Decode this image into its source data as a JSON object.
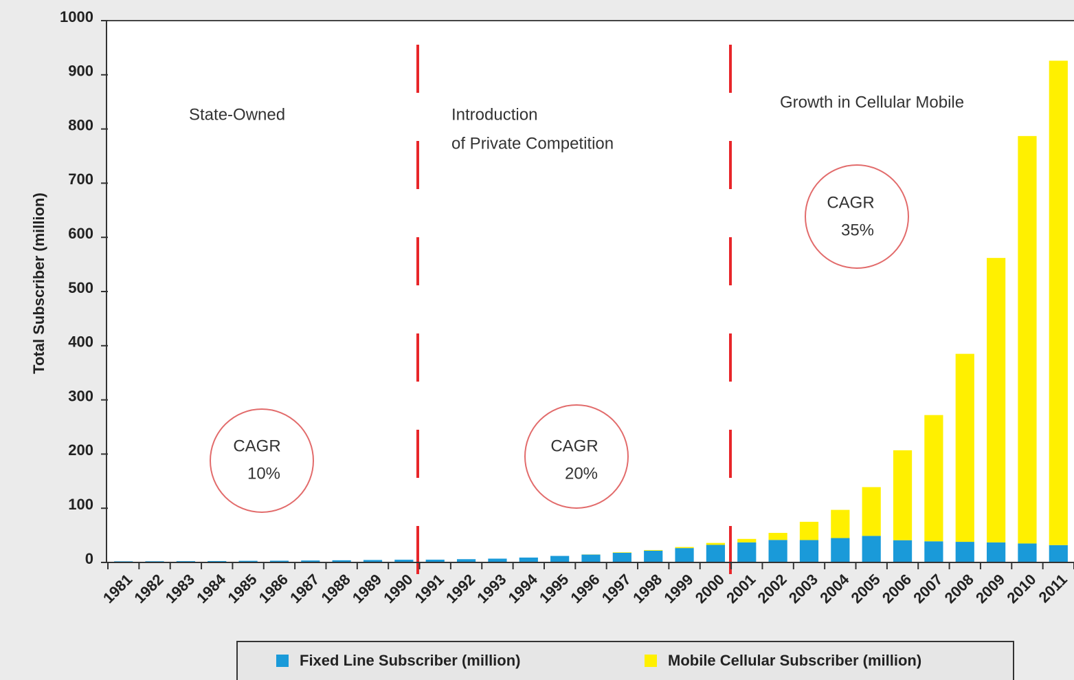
{
  "chart_data": {
    "type": "stacked_bar",
    "ylabel": "Total Subscriber (million)",
    "categories": [
      "1981",
      "1982",
      "1983",
      "1984",
      "1985",
      "1986",
      "1987",
      "1988",
      "1989",
      "1990",
      "1991",
      "1992",
      "1993",
      "1994",
      "1995",
      "1996",
      "1997",
      "1998",
      "1999",
      "2000",
      "2001",
      "2002",
      "2003",
      "2004",
      "2005",
      "2006",
      "2007",
      "2008",
      "2009",
      "2010",
      "2011"
    ],
    "series": [
      {
        "name": "Fixed Line Subscriber (million)",
        "color": "#1a9ad9",
        "values": [
          2.1,
          2.2,
          2.4,
          2.6,
          3,
          3.2,
          3.6,
          4,
          4.5,
          5,
          5.1,
          6,
          7,
          9,
          12,
          14.5,
          17.8,
          21.6,
          26.5,
          32.4,
          37,
          41.5,
          41.3,
          45,
          49,
          41,
          39,
          38,
          37,
          35,
          32
        ]
      },
      {
        "name": "Mobile Cellular Subscriber (million)",
        "color": "#fff000",
        "values": [
          0,
          0,
          0,
          0,
          0,
          0,
          0,
          0,
          0,
          0,
          0,
          0,
          0,
          0,
          0,
          0.3,
          0.9,
          1.2,
          1.9,
          3.6,
          6.4,
          13,
          33.7,
          52,
          90,
          166,
          233,
          347,
          525,
          752,
          894
        ]
      }
    ],
    "ylim": [
      0,
      1000
    ],
    "yticks": [
      0,
      100,
      200,
      300,
      400,
      500,
      600,
      700,
      800,
      900,
      1000
    ],
    "legend": "bottom",
    "annotations": [
      "State-Owned",
      "Introduction",
      "of Private Competition",
      "Growth in Cellular Mobile",
      "CAGR",
      "10%",
      "CAGR",
      "20%",
      "CAGR",
      "35%"
    ]
  }
}
